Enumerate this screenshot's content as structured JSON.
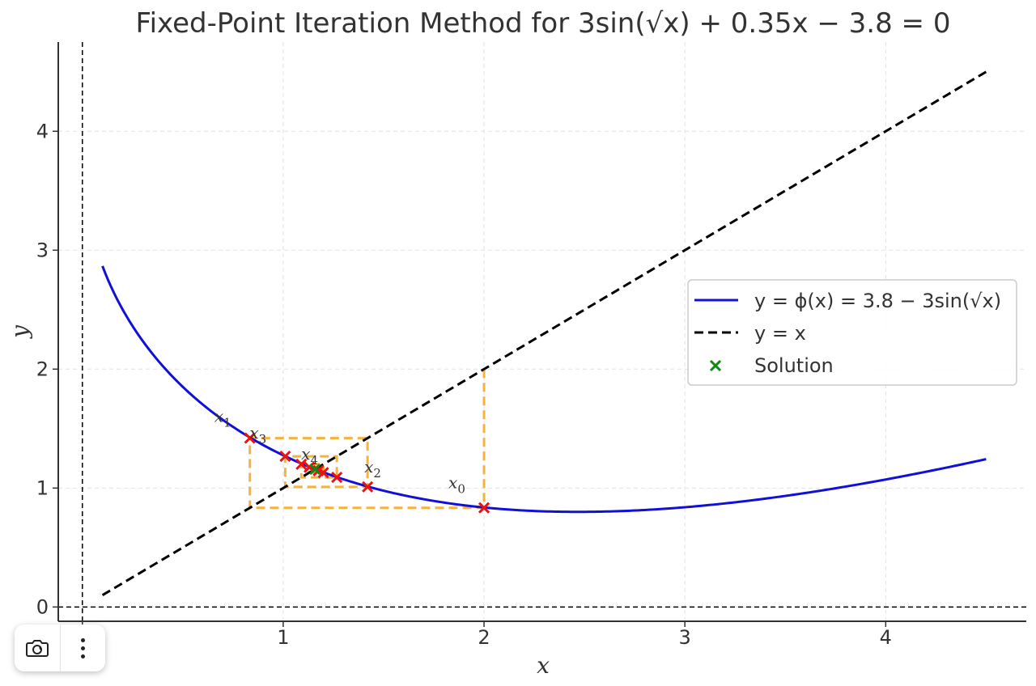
{
  "chart_data": {
    "type": "line",
    "title": "Fixed-Point Iteration Method for 3sin(√x) + 0.35x − 3.8 = 0",
    "xlabel": "x",
    "ylabel": "y",
    "xlim": [
      -0.12,
      4.7
    ],
    "ylim": [
      -0.12,
      4.75
    ],
    "xticks": [
      0,
      1,
      2,
      3,
      4
    ],
    "yticks": [
      0,
      1,
      2,
      3,
      4
    ],
    "grid": true,
    "legend_position": "center-right",
    "colors": {
      "phi": "#1010d8",
      "identity": "#000000",
      "cobweb": "#f4b23f",
      "iterate": "#ee1111",
      "solution": "#118811"
    },
    "series": [
      {
        "name": "y = ϕ(x) = 3.8 − 3sin(√x)",
        "function": "3.8 - 3*sin(sqrt(x))",
        "x_range": [
          0.1,
          4.5
        ],
        "style": "solid"
      },
      {
        "name": "y = x",
        "function": "x",
        "x_range": [
          0.1,
          4.5
        ],
        "style": "dashed"
      }
    ],
    "iterates": [
      {
        "label": "x0",
        "x": 2.0,
        "y": 0.834
      },
      {
        "label": "x1",
        "x": 0.834,
        "y": 1.42
      },
      {
        "label": "x2",
        "x": 1.42,
        "y": 1.01
      },
      {
        "label": "x3",
        "x": 1.01,
        "y": 1.267
      },
      {
        "label": "x4",
        "x": 1.267,
        "y": 1.09
      },
      {
        "label": "",
        "x": 1.09,
        "y": 1.2
      },
      {
        "label": "",
        "x": 1.2,
        "y": 1.13
      },
      {
        "label": "",
        "x": 1.13,
        "y": 1.175
      },
      {
        "label": "",
        "x": 1.175,
        "y": 1.146
      }
    ],
    "solution": {
      "name": "Solution",
      "x": 1.158,
      "y": 1.158
    }
  },
  "toolbar": {
    "camera_icon": "camera-icon",
    "menu_icon": "more-vertical-icon"
  }
}
